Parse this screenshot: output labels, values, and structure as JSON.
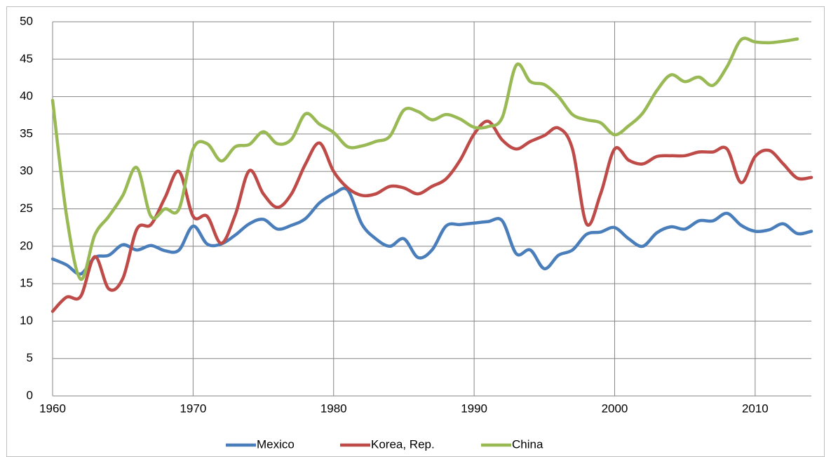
{
  "chart_data": {
    "type": "line",
    "x": [
      1960,
      1961,
      1962,
      1963,
      1964,
      1965,
      1966,
      1967,
      1968,
      1969,
      1970,
      1971,
      1972,
      1973,
      1974,
      1975,
      1976,
      1977,
      1978,
      1979,
      1980,
      1981,
      1982,
      1983,
      1984,
      1985,
      1986,
      1987,
      1988,
      1989,
      1990,
      1991,
      1992,
      1993,
      1994,
      1995,
      1996,
      1997,
      1998,
      1999,
      2000,
      2001,
      2002,
      2003,
      2004,
      2005,
      2006,
      2007,
      2008,
      2009,
      2010,
      2011,
      2012,
      2013,
      2014
    ],
    "series": [
      {
        "name": "Mexico",
        "color": "#4a7ebb",
        "values": [
          18.3,
          17.5,
          16.3,
          18.5,
          18.8,
          20.2,
          19.5,
          20.1,
          19.4,
          19.5,
          22.7,
          20.3,
          20.3,
          21.5,
          23.0,
          23.6,
          22.3,
          22.8,
          23.7,
          25.8,
          27.0,
          27.5,
          23.0,
          21.0,
          20.0,
          21.0,
          18.5,
          19.5,
          22.7,
          22.9,
          23.1,
          23.3,
          23.4,
          19.0,
          19.5,
          17.0,
          18.8,
          19.5,
          21.6,
          21.9,
          22.5,
          21.0,
          20.0,
          21.8,
          22.6,
          22.3,
          23.4,
          23.4,
          24.4,
          22.8,
          22.0,
          22.2,
          23.0,
          21.7,
          22.0
        ]
      },
      {
        "name": "Korea, Rep.",
        "color": "#be4b48",
        "values": [
          11.3,
          13.2,
          13.3,
          18.6,
          14.3,
          15.7,
          22.3,
          22.9,
          26.5,
          30.0,
          24.0,
          24.0,
          20.4,
          24.2,
          30.1,
          27.0,
          25.2,
          27.0,
          31.0,
          33.8,
          30.0,
          27.8,
          26.8,
          27.0,
          28.0,
          27.8,
          27.0,
          28.0,
          29.0,
          31.5,
          35.0,
          36.7,
          34.2,
          33.0,
          34.0,
          34.8,
          35.8,
          33.0,
          23.0,
          27.0,
          33.0,
          31.5,
          31.0,
          32.0,
          32.1,
          32.1,
          32.6,
          32.6,
          33.0,
          28.5,
          32.0,
          32.8,
          31.0,
          29.1,
          29.2
        ]
      },
      {
        "name": "China",
        "color": "#98b954",
        "values": [
          39.5,
          24.0,
          15.6,
          21.5,
          24.0,
          26.8,
          30.5,
          24.0,
          25.0,
          25.0,
          33.0,
          33.7,
          31.4,
          33.3,
          33.6,
          35.3,
          33.7,
          34.3,
          37.7,
          36.3,
          35.2,
          33.3,
          33.4,
          34.0,
          34.7,
          38.2,
          38.0,
          36.9,
          37.6,
          37.0,
          35.9,
          36.0,
          37.2,
          44.2,
          42.0,
          41.6,
          40.0,
          37.6,
          36.9,
          36.5,
          34.9,
          36.1,
          37.8,
          40.8,
          42.9,
          42.0,
          42.6,
          41.5,
          44.0,
          47.6,
          47.3,
          47.2,
          47.4,
          47.7,
          null
        ]
      }
    ],
    "xlim": [
      1960,
      2014
    ],
    "xticks": [
      1960,
      1970,
      1980,
      1990,
      2000,
      2010
    ],
    "ylim": [
      0,
      50
    ],
    "yticks": [
      0,
      5,
      10,
      15,
      20,
      25,
      30,
      35,
      40,
      45,
      50
    ],
    "grid": true,
    "legend": "bottom"
  }
}
